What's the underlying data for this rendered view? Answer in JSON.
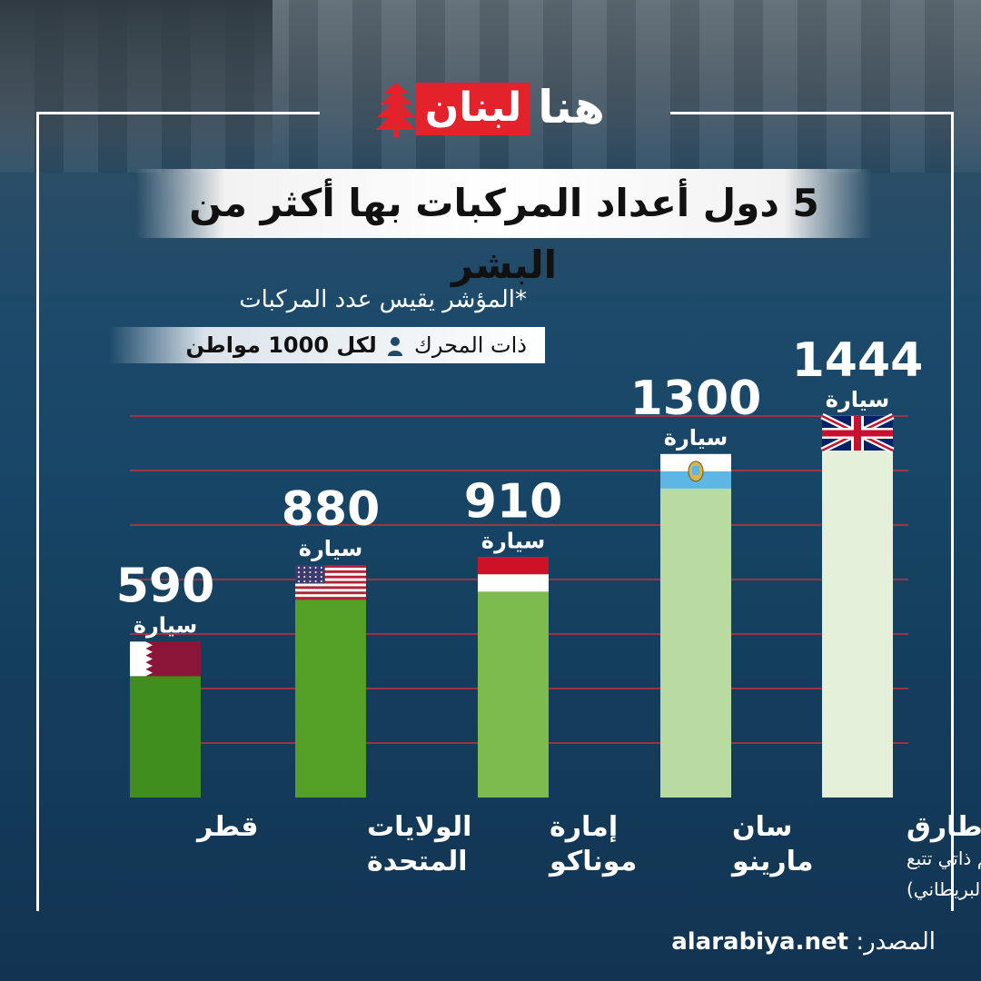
{
  "brand": {
    "logo_red": "لبنان",
    "logo_white": "هنا"
  },
  "header": {
    "title": "5 دول أعداد المركبات بها أكثر من البشر"
  },
  "note": {
    "line1": "*المؤشر يقيس عدد المركبات",
    "line2_text": "ذات المحرك",
    "line2_bold": "لكل 1000 مواطن",
    "icon": "person-icon"
  },
  "footer": {
    "source_label": "المصدر:",
    "source_site": "alarabiya.net"
  },
  "chart_data": {
    "type": "bar",
    "title": "5 دول أعداد المركبات بها أكثر من البشر",
    "unit_label": "سيارة",
    "categories": [
      {
        "name": "قطر",
        "lines": [
          "قطر"
        ],
        "value": 590,
        "flag": "qatar-flag",
        "bar_color": "#3f8e1e"
      },
      {
        "name": "الولايات المتحدة",
        "lines": [
          "الولايات",
          "المتحدة"
        ],
        "value": 880,
        "flag": "usa-flag",
        "bar_color": "#54a027"
      },
      {
        "name": "إمارة موناكو",
        "lines": [
          "إمارة",
          "موناكو"
        ],
        "value": 910,
        "flag": "monaco-flag",
        "bar_color": "#7dbb4f"
      },
      {
        "name": "سان مارينو",
        "lines": [
          "سان",
          "مارينو"
        ],
        "value": 1300,
        "flag": "san-marino-flag",
        "bar_color": "#b9dba2"
      },
      {
        "name": "جبل طارق (حكم ذاتي تتبع التاج البريطاني)",
        "lines": [
          "جبل طارق",
          "(حكم ذاتي تتبع",
          "التاج البريطاني)"
        ],
        "value": 1444,
        "flag": "uk-flag",
        "bar_color": "#e4f0da"
      }
    ],
    "values": [
      590,
      880,
      910,
      1300,
      1444
    ],
    "ylim": [
      0,
      1500
    ],
    "grid": true,
    "grid_color": "#c7313a",
    "label_color": "#ffffff",
    "flag_colors": {
      "qatar": [
        "#ffffff",
        "#8a1538"
      ],
      "usa": [
        "#b22234",
        "#ffffff",
        "#3c3b6e"
      ],
      "monaco": [
        "#ce1126",
        "#ffffff"
      ],
      "san_marino": [
        "#ffffff",
        "#5eb6e4"
      ],
      "uk": [
        "#012169",
        "#ffffff",
        "#c8102e"
      ]
    }
  }
}
